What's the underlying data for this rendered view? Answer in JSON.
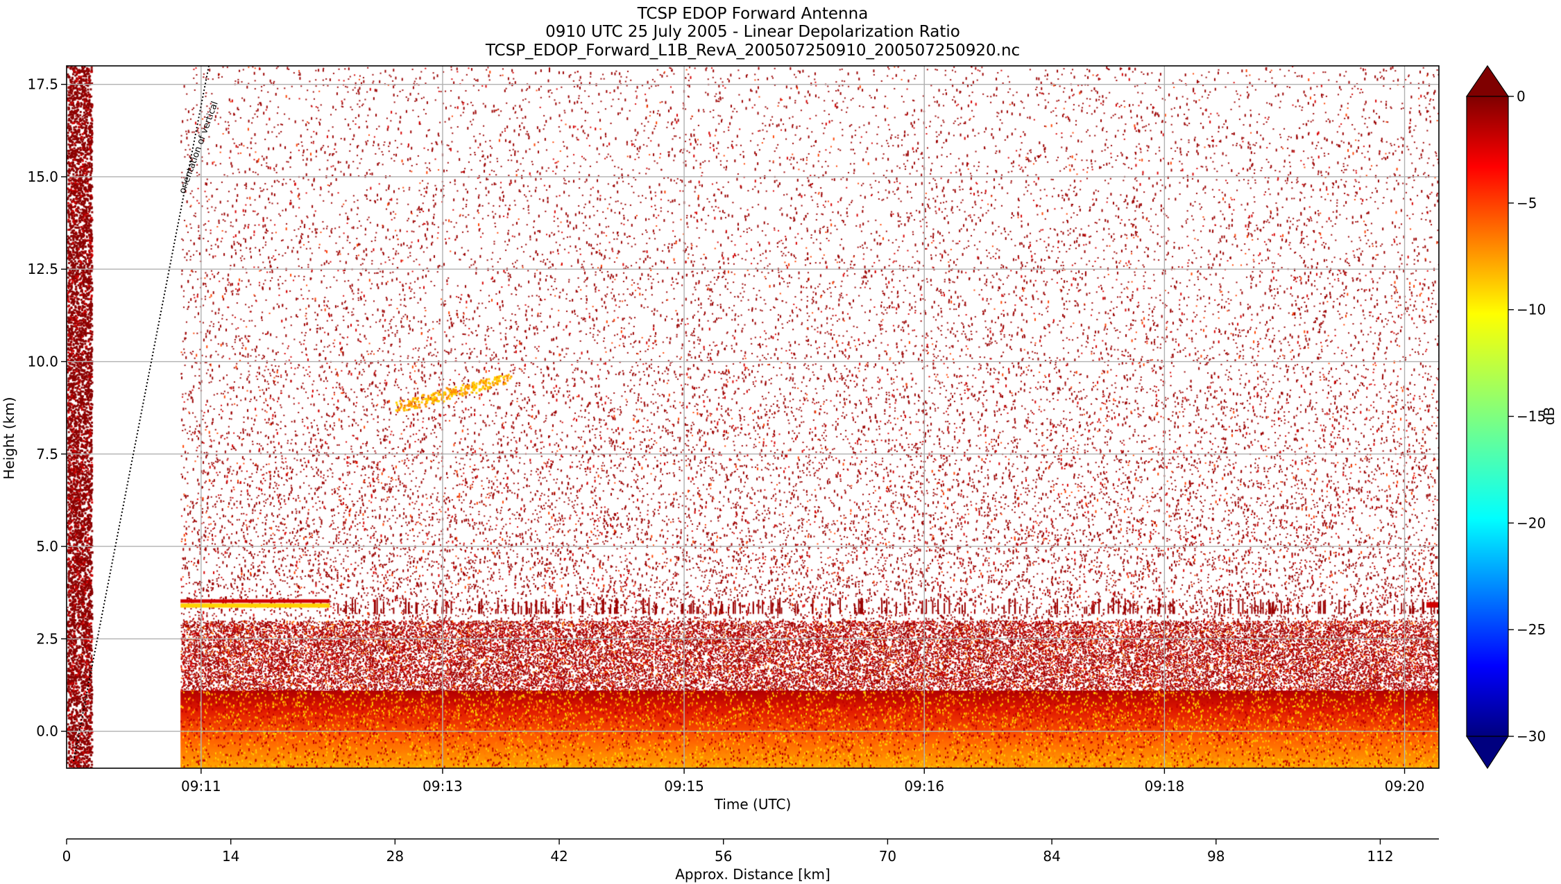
{
  "chart_data": {
    "type": "heatmap",
    "title_lines": [
      "TCSP EDOP Forward Antenna",
      "0910 UTC 25 July 2005 - Linear Depolarization Ratio",
      "TCSP_EDOP_Forward_L1B_RevA_200507250910_200507250920.nc"
    ],
    "xlabel": "Time (UTC)",
    "ylabel": "Height (km)",
    "x_tick_labels": [
      "09:11",
      "09:13",
      "09:15",
      "09:16",
      "09:18",
      "09:20"
    ],
    "x_ticks_fraction_of_axis": [
      0.098,
      0.274,
      0.45,
      0.625,
      0.8,
      0.975
    ],
    "ylim": [
      -1.0,
      18.0
    ],
    "y_ticks": [
      0.0,
      2.5,
      5.0,
      7.5,
      10.0,
      12.5,
      15.0,
      17.5
    ],
    "y_tick_labels": [
      "0.0",
      "2.5",
      "5.0",
      "7.5",
      "10.0",
      "12.5",
      "15.0",
      "17.5"
    ],
    "secondary_xlabel": "Approx. Distance [km]",
    "secondary_xlim": [
      0,
      117
    ],
    "secondary_x_ticks": [
      0,
      14,
      28,
      42,
      56,
      70,
      84,
      98,
      112
    ],
    "colorbar": {
      "label": "dB",
      "range": [
        -30,
        0
      ],
      "ticks": [
        0,
        -5,
        -10,
        -15,
        -20,
        -25,
        -30
      ],
      "tick_labels": [
        "0",
        "−5",
        "−10",
        "−15",
        "−20",
        "−25",
        "−30"
      ],
      "colormap": "jet",
      "extend": "both"
    },
    "annotation": "orientation of vertical",
    "features": {
      "data_gap_fraction": [
        0.018,
        0.083
      ],
      "bright_band_height_km": 3.4,
      "surface_layer_top_km": 1.1,
      "grid": true
    }
  }
}
